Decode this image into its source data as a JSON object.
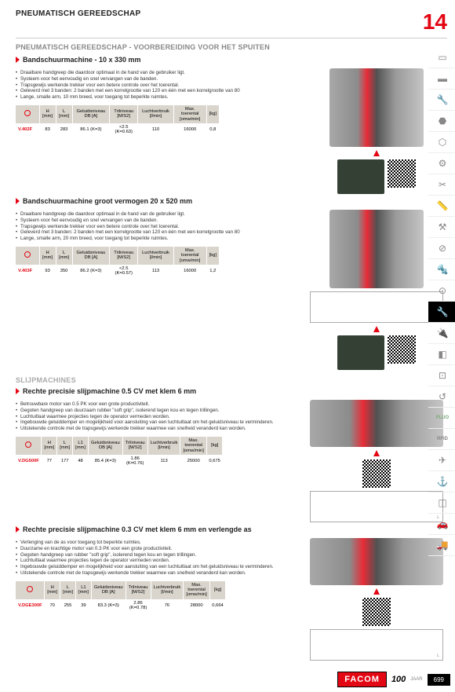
{
  "header": {
    "title": "PNEUMATISCH GEREEDSCHAP",
    "chapter": "14",
    "subhead": "PNEUMATISCH GEREEDSCHAP - VOORBEREIDING VOOR HET SPUITEN"
  },
  "sections": [
    {
      "title": "Bandschuurmachine - 10 x 330 mm",
      "features": [
        "Draaibare handgreep die daardoor optimaal in de hand van de gebruiker ligt.",
        "Systeem voor het eenvoudig en snel vervangen van de banden.",
        "Trapsgewijs werkende trekker voor een betere controle over het toerental.",
        "Geleverd met 3 banden: 2 banden met een korrelgrootte van 120 en één met een korrelgrootte van 80",
        "Lange, smalle arm, 10 mm breed, voor toegang tot beperkte ruimtes."
      ],
      "table": {
        "headers": [
          "",
          "H [mm]",
          "L [mm]",
          "Geluidsniveau DB [A]",
          "Trilniveau [M/S2]",
          "Luchtverbruik [l/min]",
          "Max. toerental [omw/min]",
          "[kg]"
        ],
        "row": [
          "V.402F",
          "83",
          "283",
          "86.1 (K=3)",
          "<2.5 (K=0.63)",
          "110",
          "16000",
          "0,8"
        ]
      }
    },
    {
      "title": "Bandschuurmachine groot vermogen 20 x 520 mm",
      "features": [
        "Draaibare handgreep die daardoor optimaal in de hand van de gebruiker ligt.",
        "Systeem voor het eenvoudig en snel vervangen van de banden.",
        "Trapsgewijs werkende trekker voor een betere controle over het toerental.",
        "Geleverd met 3 banden: 2 banden met een korrelgrootte van 120 en één met een korrelgrootte van 80",
        "Lange, smalle arm, 20 mm breed, voor toegang tot beperkte ruimtes."
      ],
      "table": {
        "headers": [
          "",
          "H [mm]",
          "L [mm]",
          "Geluidsniveau DB [A]",
          "Trilniveau [M/S2]",
          "Luchtverbruik [l/min]",
          "Max. toerental [omw/min]",
          "[kg]"
        ],
        "row": [
          "V.403F",
          "93",
          "350",
          "86.2 (K=3)",
          "<2.5 (K=0.57)",
          "113",
          "16000",
          "1,2"
        ]
      }
    }
  ],
  "slijp_header": "SLIJPMACHINES",
  "slijp_sections": [
    {
      "title": "Rechte precisie slijpmachine 0.5 CV met klem 6 mm",
      "features": [
        "Betrouwbare motor van 0.5 PK voor een grote productiviteit.",
        "Gegoten handgreep van duurzaam rubber \"soft grip\", isolerend tegen kou en tegen trillingen.",
        "Luchtuitlaat waarmee projecties tegen de operator vermeden worden.",
        "Ingebouwde geluiddemper en mogelijkheid voor aansluiting van een luchtuitlaat om het geluidsniveau te verminderen.",
        "Uitstekende controle met de trapsgewijs werkende trekker waarmee van snelheid veranderd kan worden."
      ],
      "table": {
        "headers": [
          "",
          "H [mm]",
          "L [mm]",
          "L1 [mm]",
          "Geluidsniveau DB [A]",
          "Trilniveau [M/S2]",
          "Luchtverbruik [l/min]",
          "Max. toerental [omw/min]",
          "[kg]"
        ],
        "row": [
          "V.DG500F",
          "77",
          "177",
          "48",
          "85.4 (K=3)",
          "1.86 (K=0.76)",
          "113",
          "25000",
          "0,675"
        ]
      }
    },
    {
      "title": "Rechte precisie slijpmachine 0.3 CV met klem 6 mm en verlengde as",
      "features": [
        "Verlenging van de as voor toegang tot beperkte ruimtes.",
        "Duurzame en krachtige motor van 0.3 PK voor een grote productiviteit.",
        "Gegoten handgreep van rubber \"soft grip\", isolerend tegen kou en tegen trillingen.",
        "Luchtuitlaat waarmee projecties tegen de operator vermeden worden.",
        "Ingebouwde geluiddemper en mogelijkheid voor aansluiting van een luchtuitlaat om het geluidsniveau te verminderen.",
        "Uitstekende controle met de trapsgewijs werkende trekker waarmee van snelheid veranderd kan worden."
      ],
      "table": {
        "headers": [
          "",
          "H [mm]",
          "L [mm]",
          "L1 [mm]",
          "Geluidsniveau DB [A]",
          "Trilniveau [M/S2]",
          "Luchtverbruik [l/min]",
          "Max. toerental [omw/min]",
          "[kg]"
        ],
        "row": [
          "V.DGE300F",
          "70",
          "255",
          "39",
          "83.3 (K=3)",
          "2.86 (K=0.78)",
          "76",
          "28000",
          "0,664"
        ]
      }
    }
  ],
  "sidebar_icons": [
    "▭",
    "▬",
    "🔧",
    "⬣",
    "⬡",
    "⚙",
    "✂",
    "📏",
    "⚒",
    "⊘",
    "🔩",
    "⊙",
    "ACTIVE",
    "🔌",
    "◧",
    "⊡",
    "↺",
    "FLUO",
    "RFID",
    "✈",
    "⚓",
    "◫",
    "🚗",
    "🚚"
  ],
  "footer": {
    "brand": "FACOM",
    "years": "100",
    "jaar": "JAAR",
    "page": "699"
  },
  "colors": {
    "accent": "#e30613",
    "muted": "#888",
    "th_bg": "#d9d5cc"
  }
}
